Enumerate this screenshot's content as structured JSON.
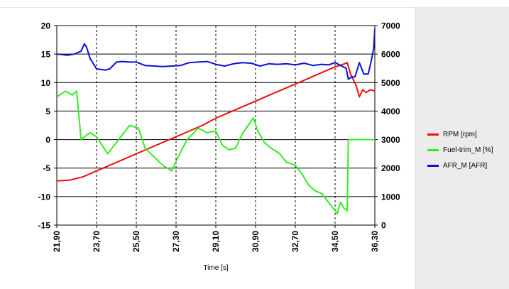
{
  "chart_data": {
    "type": "line",
    "xlabel": "Time [s]",
    "x_ticks": [
      "21,90",
      "23,70",
      "25,50",
      "27,30",
      "29,10",
      "30,90",
      "32,70",
      "34,50",
      "36,30"
    ],
    "x_tick_values": [
      21.9,
      23.7,
      25.5,
      27.3,
      29.1,
      30.9,
      32.7,
      34.5,
      36.3
    ],
    "xlim": [
      21.9,
      36.3
    ],
    "left_axis": {
      "ticks": [
        "20",
        "15",
        "10",
        "5",
        "0",
        "-5",
        "-10",
        "-15"
      ],
      "ylim": [
        -15,
        20
      ]
    },
    "right_axis": {
      "ticks": [
        "7000",
        "6000",
        "5000",
        "4000",
        "3000",
        "2000",
        "1000",
        "0"
      ],
      "ylim": [
        0,
        7000
      ]
    },
    "grid": {
      "horizontal": "solid",
      "vertical": "dashed"
    },
    "legend_position": "right",
    "series": [
      {
        "name": "RPM [rpm]",
        "color": "#e81010",
        "axis": "right",
        "x": [
          21.9,
          22.5,
          23.1,
          23.7,
          24.3,
          24.9,
          25.5,
          26.1,
          26.7,
          27.3,
          27.9,
          28.5,
          29.1,
          29.7,
          30.3,
          30.9,
          31.5,
          32.1,
          32.7,
          33.3,
          33.9,
          34.5,
          34.9,
          35.05,
          35.2,
          35.45,
          35.6,
          35.75,
          35.9,
          36.1,
          36.3
        ],
        "values": [
          1550,
          1580,
          1700,
          1900,
          2100,
          2300,
          2500,
          2700,
          2900,
          3100,
          3300,
          3500,
          3750,
          3950,
          4150,
          4350,
          4550,
          4750,
          4950,
          5150,
          5350,
          5550,
          5650,
          5700,
          5300,
          4900,
          4500,
          4750,
          4650,
          4750,
          4700
        ]
      },
      {
        "name": "Fuel-trim_M [%]",
        "color": "#33ee22",
        "axis": "left",
        "x": [
          21.9,
          22.3,
          22.6,
          22.8,
          23.0,
          23.15,
          23.4,
          23.7,
          24.2,
          24.7,
          25.2,
          25.6,
          25.9,
          26.3,
          26.7,
          27.1,
          27.4,
          27.8,
          28.3,
          28.7,
          29.1,
          29.4,
          29.7,
          30.0,
          30.3,
          30.8,
          31.0,
          31.3,
          31.6,
          32.0,
          32.3,
          32.7,
          33.0,
          33.3,
          33.6,
          33.9,
          34.2,
          34.4,
          34.6,
          34.75,
          34.9,
          35.05,
          35.1,
          35.3,
          35.6,
          36.0,
          36.3
        ],
        "values": [
          7.5,
          8.5,
          7.8,
          8.5,
          0,
          0.5,
          1.2,
          0.5,
          -2.5,
          0,
          2.5,
          2.0,
          -1.5,
          -3.0,
          -4.5,
          -5.5,
          -3.0,
          0,
          2.0,
          1.2,
          1.5,
          -1.0,
          -1.8,
          -1.5,
          1.0,
          3.8,
          1.5,
          -0.5,
          -1.5,
          -2.5,
          -4.0,
          -4.5,
          -6.0,
          -8.0,
          -9.0,
          -9.5,
          -11.0,
          -12.0,
          -13.0,
          -11.0,
          -12.0,
          -12.5,
          0,
          0,
          0,
          0,
          0
        ]
      },
      {
        "name": "AFR_M [AFR]",
        "color": "#0a12cc",
        "axis": "left",
        "x": [
          21.9,
          22.4,
          22.7,
          23.0,
          23.15,
          23.25,
          23.4,
          23.7,
          24.1,
          24.3,
          24.6,
          24.9,
          25.2,
          25.5,
          25.9,
          26.3,
          26.7,
          27.1,
          27.5,
          27.9,
          28.3,
          28.7,
          29.1,
          29.5,
          29.9,
          30.3,
          30.7,
          31.1,
          31.5,
          31.9,
          32.3,
          32.7,
          33.1,
          33.5,
          33.9,
          34.2,
          34.5,
          34.75,
          35.0,
          35.1,
          35.25,
          35.4,
          35.6,
          35.8,
          36.0,
          36.15,
          36.25,
          36.3
        ],
        "values": [
          15.0,
          14.8,
          15.0,
          15.5,
          16.8,
          16.2,
          14.3,
          12.4,
          12.2,
          12.4,
          13.6,
          13.7,
          13.6,
          13.6,
          13.0,
          12.9,
          12.8,
          12.9,
          13.0,
          13.5,
          13.6,
          13.7,
          13.2,
          12.9,
          13.3,
          13.5,
          13.4,
          12.9,
          13.3,
          13.2,
          13.3,
          13.1,
          13.4,
          13.0,
          13.2,
          13.1,
          13.5,
          13.0,
          12.5,
          10.6,
          11.0,
          11.0,
          13.5,
          11.5,
          11.5,
          14.0,
          16.0,
          19.5
        ]
      }
    ]
  }
}
